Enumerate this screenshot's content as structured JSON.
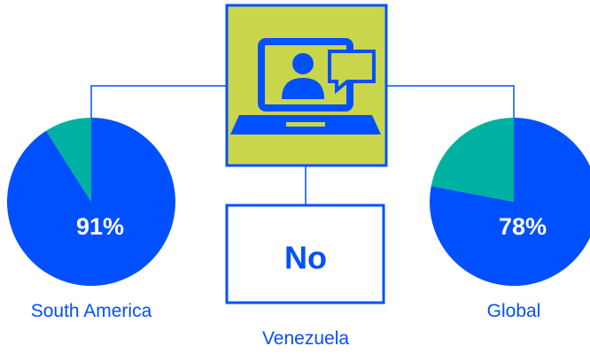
{
  "chart_data": [
    {
      "type": "pie",
      "label": "South America",
      "values": [
        91,
        9
      ],
      "value_labels": [
        "91%",
        null
      ],
      "colors": [
        "#0050ff",
        "#00b0a0"
      ]
    },
    {
      "type": "pie",
      "label": "Global",
      "values": [
        78,
        22
      ],
      "value_labels": [
        "78%",
        null
      ],
      "colors": [
        "#0050ff",
        "#00b0a0"
      ]
    }
  ],
  "center": {
    "answer": "No",
    "label": "Venezuela"
  }
}
